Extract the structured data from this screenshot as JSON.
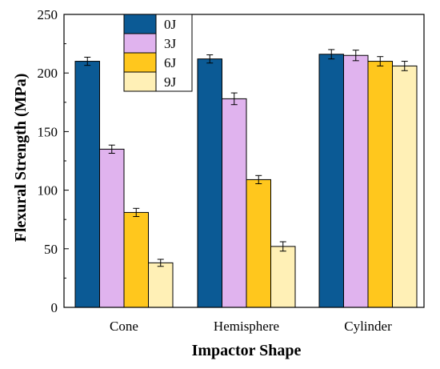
{
  "chart_data": {
    "type": "bar",
    "title": "",
    "xlabel": "Impactor Shape",
    "ylabel": "Flexural Strength (MPa)",
    "categories": [
      "Cone",
      "Hemisphere",
      "Cylinder"
    ],
    "ylim": [
      0,
      250
    ],
    "yticks": [
      "0",
      "50",
      "100",
      "150",
      "200",
      "250"
    ],
    "grid": false,
    "legend_position": "top-left",
    "series": [
      {
        "name": "0J",
        "color": "#0b5a95",
        "values": [
          210,
          212,
          216
        ],
        "errors": [
          3.5,
          3.5,
          4
        ]
      },
      {
        "name": "3J",
        "color": "#e0b3ee",
        "values": [
          135,
          178,
          215
        ],
        "errors": [
          3.5,
          5,
          4.5
        ]
      },
      {
        "name": "6J",
        "color": "#ffc71d",
        "values": [
          81,
          109,
          210
        ],
        "errors": [
          3.5,
          3.5,
          4
        ]
      },
      {
        "name": "9J",
        "color": "#fff0b6",
        "values": [
          38,
          52,
          206
        ],
        "errors": [
          3,
          4,
          4
        ]
      }
    ]
  }
}
